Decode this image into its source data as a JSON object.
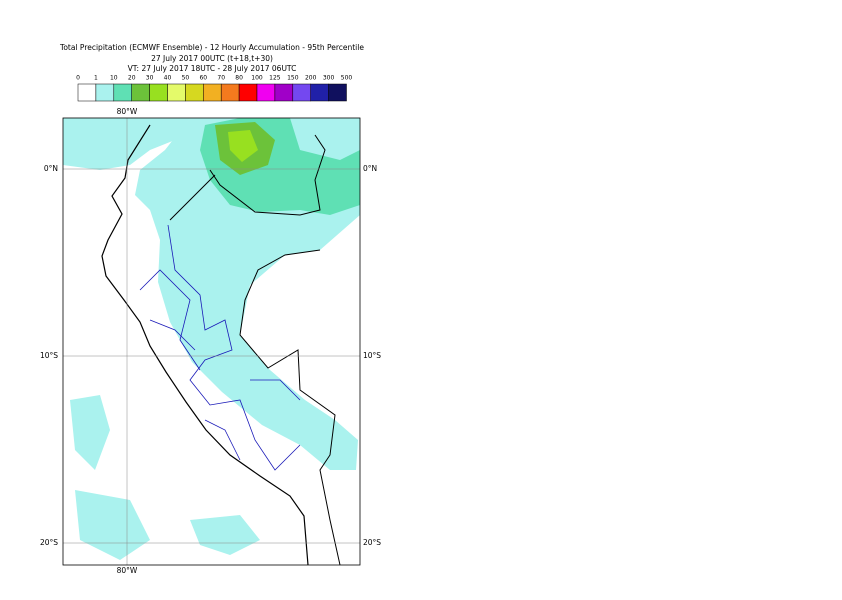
{
  "header": {
    "title": "Total Precipitation (ECMWF Ensemble) - 12 Hourly Accumulation - 95th Percentile",
    "run": "27 July 2017 00UTC (t+18,t+30)",
    "valid": "VT: 27 July 2017 18UTC - 28 July 2017 06UTC"
  },
  "legend": {
    "labels": [
      "0",
      "1",
      "10",
      "20",
      "30",
      "40",
      "50",
      "60",
      "70",
      "80",
      "100",
      "125",
      "150",
      "200",
      "300",
      "500"
    ],
    "colors": [
      "#ffffff",
      "#aaf2ee",
      "#5fe0b4",
      "#6cc23a",
      "#98e020",
      "#e4fa6a",
      "#d6d820",
      "#f2b022",
      "#f47a1e",
      "#ff0000",
      "#f000f0",
      "#a000c8",
      "#7448f0",
      "#2020a8",
      "#10105e"
    ]
  },
  "map": {
    "lon_labels": [
      "80°W"
    ],
    "lat_labels": [
      "0°N",
      "10°S",
      "20°S"
    ]
  }
}
